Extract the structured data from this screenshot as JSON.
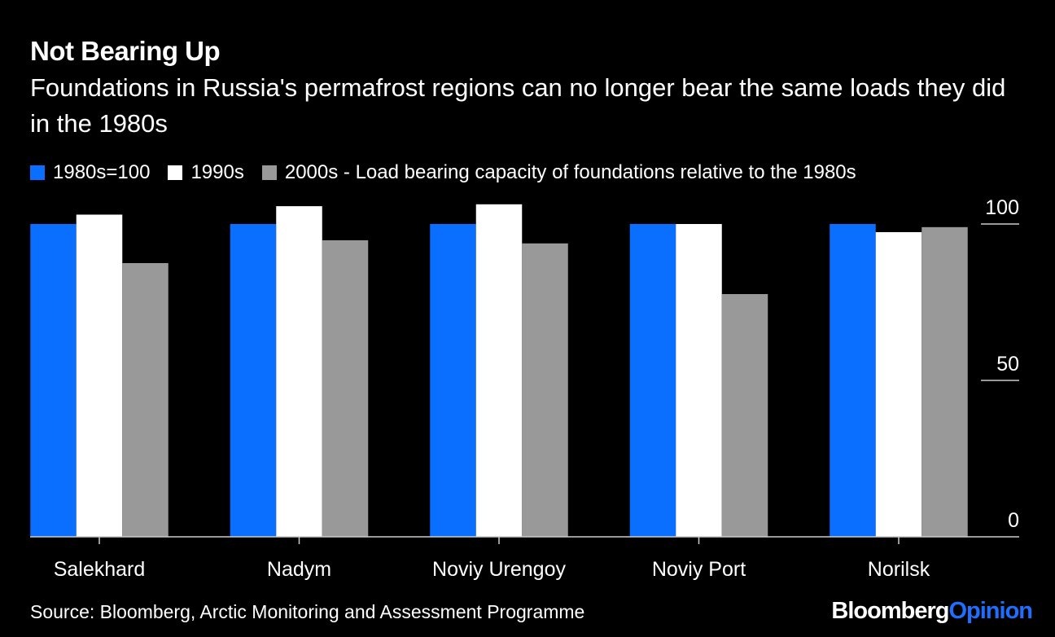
{
  "chart_data": {
    "type": "bar",
    "title": "Not Bearing Up",
    "subtitle": "Foundations in Russia's permafrost regions can no longer bear the same loads they did in the 1980s",
    "categories": [
      "Salekhard",
      "Nadym",
      "Noviy Urengoy",
      "Noviy Port",
      "Norilsk"
    ],
    "series": [
      {
        "name": "1980s=100",
        "color": "#0a6eff",
        "values": [
          100,
          100,
          100,
          100,
          100
        ]
      },
      {
        "name": "1990s",
        "color": "#ffffff",
        "values": [
          103,
          105.7,
          106.3,
          100,
          97.4
        ]
      },
      {
        "name": "2000s - Load bearing capacity of foundations relative to the 1980s",
        "color": "#999999",
        "values": [
          87.5,
          94.8,
          93.8,
          77.6,
          99
        ]
      }
    ],
    "yticks": [
      0,
      50,
      100
    ],
    "ylim": [
      0,
      100
    ],
    "grid": false,
    "legend_position": "top-left",
    "source": "Source: Bloomberg, Arctic Monitoring and Assessment Programme"
  },
  "branding": {
    "logo_part1": "Bloomberg",
    "logo_part2": "Opinion"
  }
}
